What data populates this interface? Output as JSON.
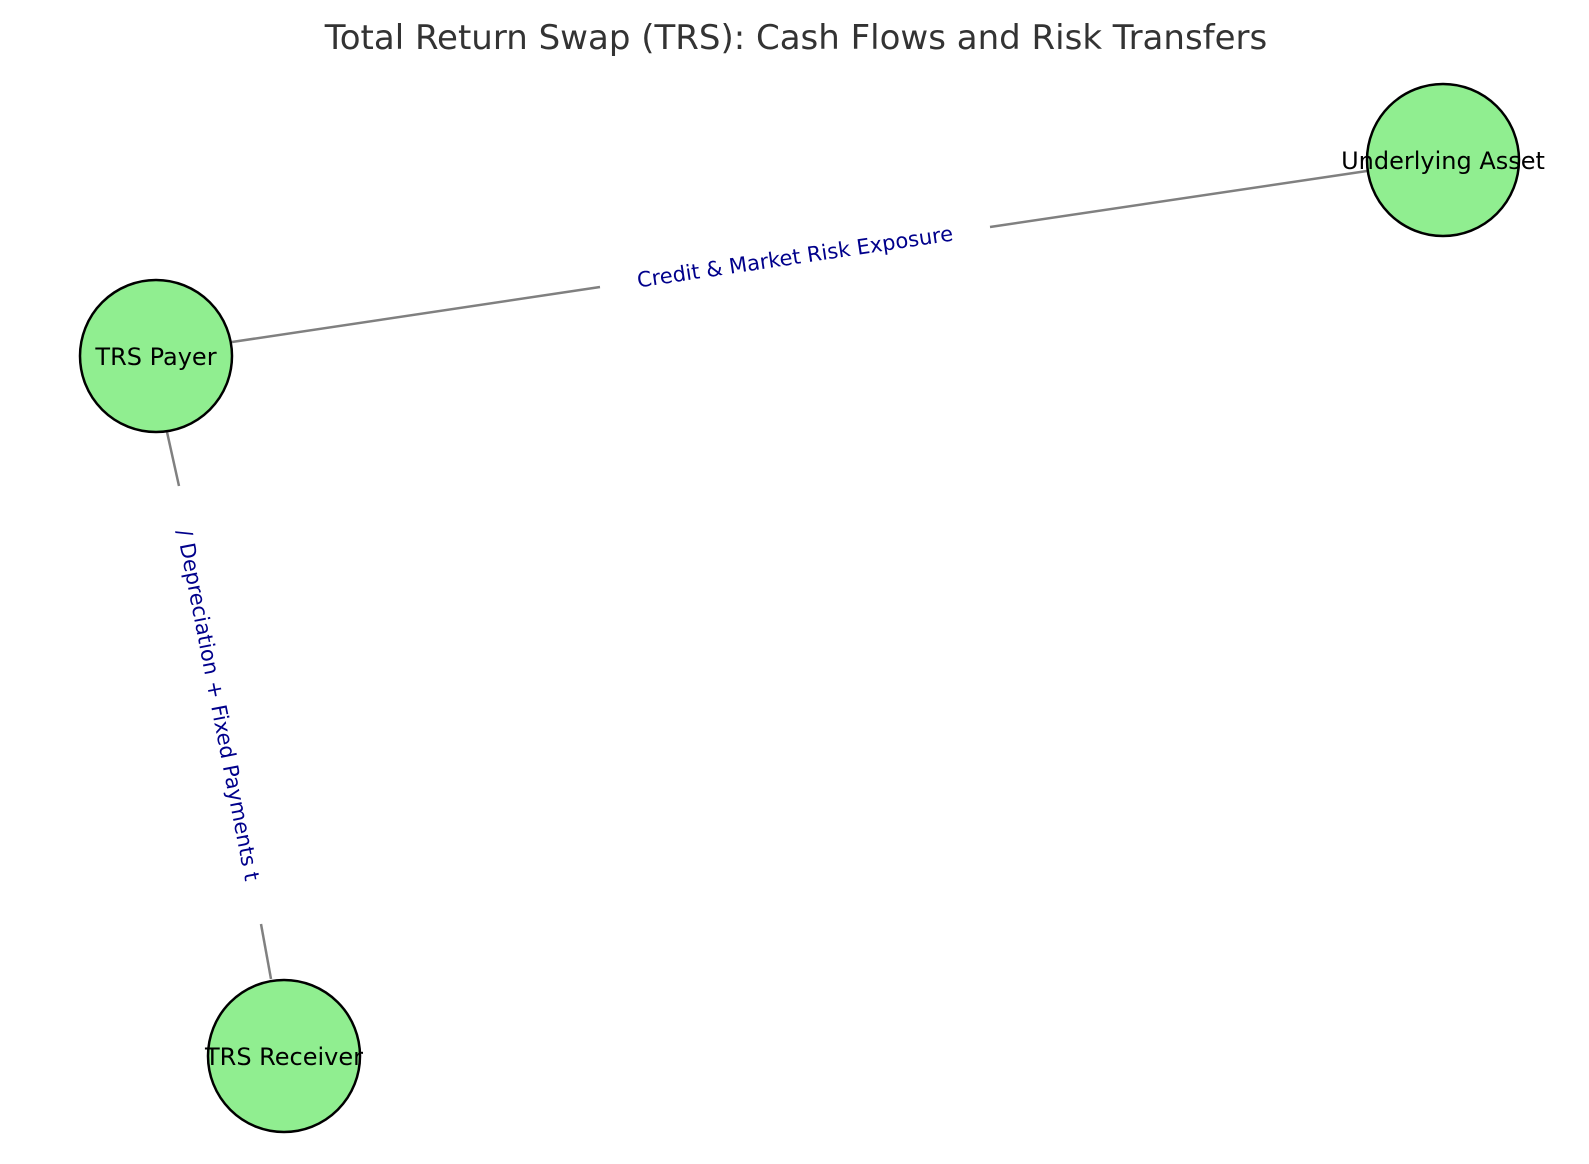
{
  "diagram": {
    "title": "Total Return Swap (TRS): Cash Flows and Risk Transfers",
    "colors": {
      "node_fill": "#90EE90",
      "node_stroke": "#000000",
      "edge": "#808080",
      "edge_label": "#00008B",
      "title": "#333333"
    },
    "nodes": [
      {
        "id": "underlying-asset",
        "label": "Underlying Asset"
      },
      {
        "id": "trs-payer",
        "label": "TRS Payer"
      },
      {
        "id": "trs-receiver",
        "label": "TRS Receiver"
      }
    ],
    "edges": [
      {
        "from": "trs-payer",
        "to": "underlying-asset",
        "label": "Credit & Market Risk Exposure"
      },
      {
        "from": "trs-payer",
        "to": "trs-receiver",
        "label": "/ Depreciation + Fixed Payments t"
      }
    ]
  }
}
